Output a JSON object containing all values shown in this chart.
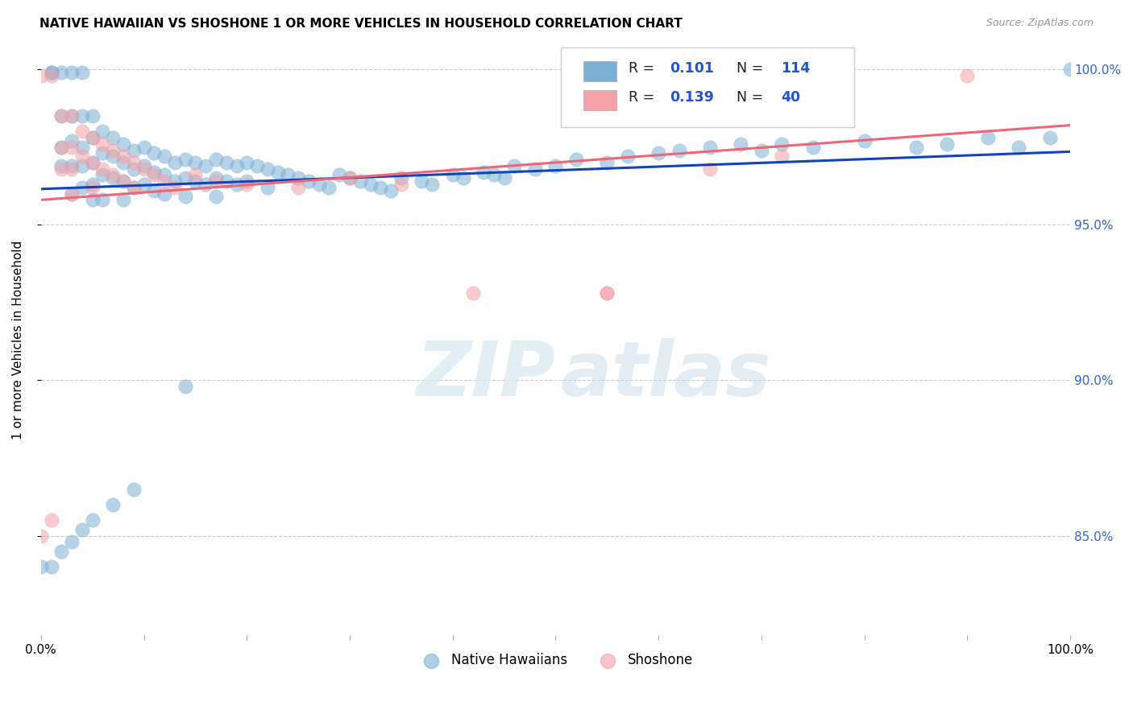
{
  "title": "NATIVE HAWAIIAN VS SHOSHONE 1 OR MORE VEHICLES IN HOUSEHOLD CORRELATION CHART",
  "source": "Source: ZipAtlas.com",
  "ylabel": "1 or more Vehicles in Household",
  "xlim": [
    0.0,
    1.0
  ],
  "ylim": [
    0.818,
    1.008
  ],
  "yticks": [
    0.85,
    0.9,
    0.95,
    1.0
  ],
  "ytick_labels": [
    "85.0%",
    "90.0%",
    "95.0%",
    "100.0%"
  ],
  "legend_r_blue": "0.101",
  "legend_n_blue": "114",
  "legend_r_pink": "0.139",
  "legend_n_pink": "40",
  "blue_color": "#7BAFD4",
  "pink_color": "#F4A0A8",
  "line_blue": "#1144BB",
  "line_pink": "#EE6677",
  "watermark_zip": "ZIP",
  "watermark_atlas": "atlas",
  "background_color": "#FFFFFF",
  "blue_scatter_x": [
    0.01,
    0.01,
    0.02,
    0.02,
    0.02,
    0.02,
    0.03,
    0.03,
    0.03,
    0.03,
    0.03,
    0.04,
    0.04,
    0.04,
    0.04,
    0.04,
    0.05,
    0.05,
    0.05,
    0.05,
    0.05,
    0.06,
    0.06,
    0.06,
    0.06,
    0.07,
    0.07,
    0.07,
    0.08,
    0.08,
    0.08,
    0.08,
    0.09,
    0.09,
    0.09,
    0.1,
    0.1,
    0.1,
    0.11,
    0.11,
    0.11,
    0.12,
    0.12,
    0.12,
    0.13,
    0.13,
    0.14,
    0.14,
    0.14,
    0.15,
    0.15,
    0.16,
    0.16,
    0.17,
    0.17,
    0.17,
    0.18,
    0.18,
    0.19,
    0.19,
    0.2,
    0.2,
    0.21,
    0.22,
    0.22,
    0.23,
    0.24,
    0.25,
    0.26,
    0.27,
    0.28,
    0.29,
    0.3,
    0.31,
    0.32,
    0.33,
    0.34,
    0.35,
    0.37,
    0.38,
    0.4,
    0.41,
    0.43,
    0.44,
    0.45,
    0.46,
    0.48,
    0.5,
    0.52,
    0.55,
    0.57,
    0.6,
    0.62,
    0.65,
    0.68,
    0.7,
    0.72,
    0.75,
    0.8,
    0.85,
    0.88,
    0.92,
    0.95,
    0.98,
    0.0,
    0.01,
    0.02,
    0.03,
    0.04,
    0.05,
    0.07,
    0.09,
    0.14,
    1.0
  ],
  "blue_scatter_y": [
    0.999,
    0.999,
    0.999,
    0.985,
    0.975,
    0.969,
    0.999,
    0.985,
    0.977,
    0.969,
    0.96,
    0.999,
    0.985,
    0.975,
    0.969,
    0.962,
    0.985,
    0.978,
    0.97,
    0.963,
    0.958,
    0.98,
    0.973,
    0.966,
    0.958,
    0.978,
    0.972,
    0.965,
    0.976,
    0.97,
    0.964,
    0.958,
    0.974,
    0.968,
    0.962,
    0.975,
    0.969,
    0.963,
    0.973,
    0.967,
    0.961,
    0.972,
    0.966,
    0.96,
    0.97,
    0.964,
    0.971,
    0.965,
    0.959,
    0.97,
    0.964,
    0.969,
    0.963,
    0.971,
    0.965,
    0.959,
    0.97,
    0.964,
    0.969,
    0.963,
    0.97,
    0.964,
    0.969,
    0.968,
    0.962,
    0.967,
    0.966,
    0.965,
    0.964,
    0.963,
    0.962,
    0.966,
    0.965,
    0.964,
    0.963,
    0.962,
    0.961,
    0.965,
    0.964,
    0.963,
    0.966,
    0.965,
    0.967,
    0.966,
    0.965,
    0.969,
    0.968,
    0.969,
    0.971,
    0.97,
    0.972,
    0.973,
    0.974,
    0.975,
    0.976,
    0.974,
    0.976,
    0.975,
    0.977,
    0.975,
    0.976,
    0.978,
    0.975,
    0.978,
    0.84,
    0.84,
    0.845,
    0.848,
    0.852,
    0.855,
    0.86,
    0.865,
    0.898,
    1.0
  ],
  "pink_scatter_x": [
    0.0,
    0.0,
    0.01,
    0.01,
    0.02,
    0.02,
    0.02,
    0.03,
    0.03,
    0.03,
    0.03,
    0.04,
    0.04,
    0.05,
    0.05,
    0.05,
    0.06,
    0.06,
    0.07,
    0.07,
    0.08,
    0.08,
    0.09,
    0.09,
    0.1,
    0.11,
    0.12,
    0.13,
    0.15,
    0.17,
    0.2,
    0.25,
    0.3,
    0.35,
    0.42,
    0.55,
    0.65,
    0.72,
    0.9,
    0.55
  ],
  "pink_scatter_y": [
    0.998,
    0.85,
    0.998,
    0.855,
    0.985,
    0.975,
    0.968,
    0.985,
    0.975,
    0.968,
    0.96,
    0.98,
    0.972,
    0.978,
    0.97,
    0.962,
    0.976,
    0.968,
    0.974,
    0.966,
    0.972,
    0.964,
    0.97,
    0.962,
    0.968,
    0.966,
    0.964,
    0.962,
    0.966,
    0.964,
    0.963,
    0.962,
    0.965,
    0.963,
    0.928,
    0.928,
    0.968,
    0.972,
    0.998,
    0.928
  ],
  "blue_trend_x": [
    0.0,
    1.0
  ],
  "blue_trend_y": [
    0.9615,
    0.9735
  ],
  "pink_trend_x": [
    0.0,
    1.0
  ],
  "pink_trend_y": [
    0.958,
    0.982
  ]
}
